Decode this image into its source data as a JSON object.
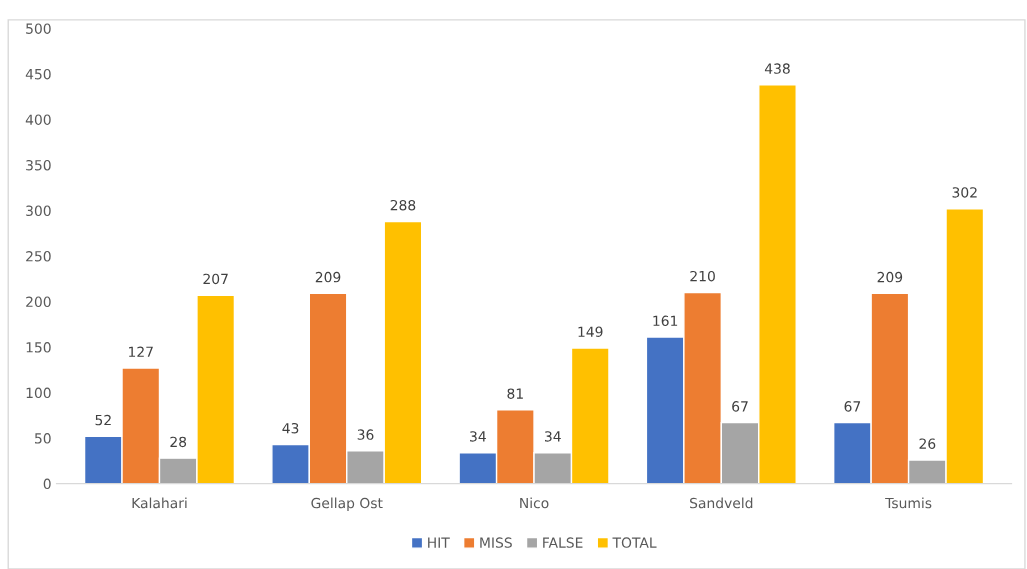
{
  "chart_data": {
    "type": "bar",
    "categories": [
      "Kalahari",
      "Gellap Ost",
      "Nico",
      "Sandveld",
      "Tsumis"
    ],
    "series": [
      {
        "name": "HIT",
        "color": "#4472c4",
        "values": [
          52,
          43,
          34,
          161,
          67
        ]
      },
      {
        "name": "MISS",
        "color": "#ed7d31",
        "values": [
          127,
          209,
          81,
          210,
          209
        ]
      },
      {
        "name": "FALSE",
        "color": "#a5a5a5",
        "values": [
          28,
          36,
          34,
          67,
          26
        ]
      },
      {
        "name": "TOTAL",
        "color": "#ffc000",
        "values": [
          207,
          288,
          149,
          438,
          302
        ]
      }
    ],
    "ylim": [
      0,
      500
    ],
    "yticks": [
      0,
      50,
      100,
      150,
      200,
      250,
      300,
      350,
      400,
      450,
      500
    ],
    "data_labels": true,
    "grid": false,
    "legend": "bottom"
  }
}
